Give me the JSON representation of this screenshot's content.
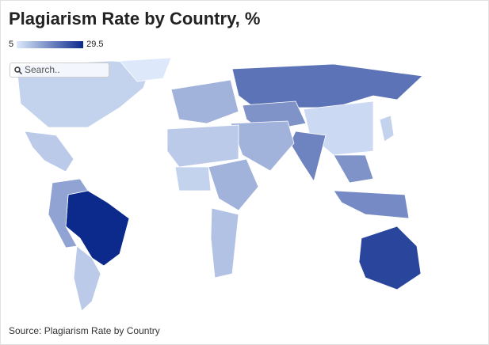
{
  "map_data": {
    "type": "choropleth",
    "title": "Plagiarism Rate by Country, %",
    "legend": {
      "min": 5,
      "max": 29.5,
      "color_min": "#dde9fb",
      "color_max": "#0b2a8c"
    },
    "search_placeholder": "Search..",
    "source": "Source: Plagiarism Rate by Country",
    "values": [
      8,
      5,
      9,
      29.5,
      14,
      9,
      12,
      20,
      16,
      7,
      18,
      12,
      9,
      8,
      12,
      10,
      16,
      17,
      26,
      8
    ]
  }
}
